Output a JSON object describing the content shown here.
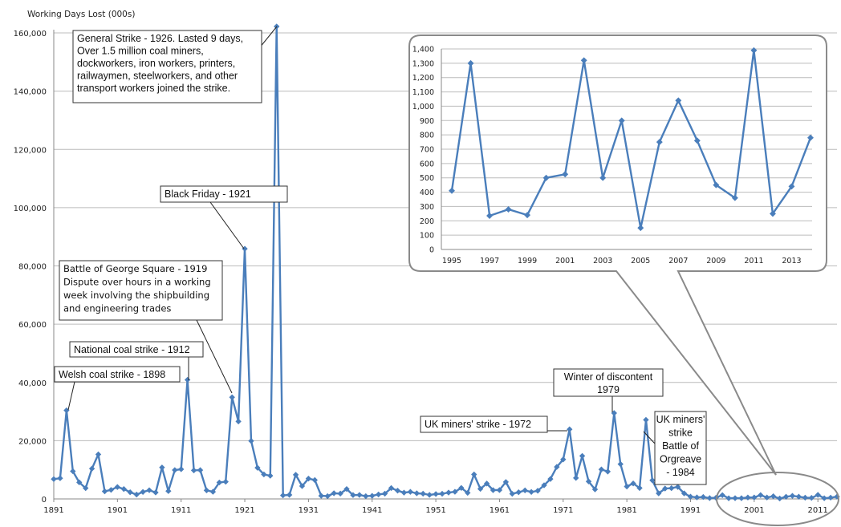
{
  "chart_data": [
    {
      "type": "line",
      "ylabel": "Working Days Lost (000s)",
      "xlim": [
        1891,
        2014
      ],
      "ylim": [
        0,
        160000
      ],
      "yticks": [
        "0",
        "20,000",
        "40,000",
        "60,000",
        "80,000",
        "100,000",
        "120,000",
        "140,000",
        "160,000"
      ],
      "xticks": [
        "1891",
        "1901",
        "1911",
        "1921",
        "1931",
        "1941",
        "1951",
        "1961",
        "1971",
        "1981",
        "1991",
        "2001",
        "2011"
      ],
      "grid": "horizontal",
      "series": [
        {
          "color": "#4a7ebb",
          "x": [
            1891,
            1892,
            1893,
            1894,
            1895,
            1896,
            1897,
            1898,
            1899,
            1900,
            1901,
            1902,
            1903,
            1904,
            1905,
            1906,
            1907,
            1908,
            1909,
            1910,
            1911,
            1912,
            1913,
            1914,
            1915,
            1916,
            1917,
            1918,
            1919,
            1920,
            1921,
            1922,
            1923,
            1924,
            1925,
            1926,
            1927,
            1928,
            1929,
            1930,
            1931,
            1932,
            1933,
            1934,
            1935,
            1936,
            1937,
            1938,
            1939,
            1940,
            1941,
            1942,
            1943,
            1944,
            1945,
            1946,
            1947,
            1948,
            1949,
            1950,
            1951,
            1952,
            1953,
            1954,
            1955,
            1956,
            1957,
            1958,
            1959,
            1960,
            1961,
            1962,
            1963,
            1964,
            1965,
            1966,
            1967,
            1968,
            1969,
            1970,
            1971,
            1972,
            1973,
            1974,
            1975,
            1976,
            1977,
            1978,
            1979,
            1980,
            1981,
            1982,
            1983,
            1984,
            1985,
            1986,
            1987,
            1988,
            1989,
            1990,
            1991,
            1992,
            1993,
            1994,
            1995,
            1996,
            1997,
            1998,
            1999,
            2000,
            2001,
            2002,
            2003,
            2004,
            2005,
            2006,
            2007,
            2008,
            2009,
            2010,
            2011,
            2012,
            2013,
            2014
          ],
          "y": [
            6800,
            7100,
            30400,
            9500,
            5700,
            3700,
            10400,
            15300,
            2600,
            3100,
            4100,
            3400,
            2300,
            1500,
            2400,
            3000,
            2200,
            10800,
            2700,
            9900,
            10200,
            40900,
            9800,
            9900,
            2950,
            2450,
            5650,
            5900,
            34900,
            26600,
            85900,
            19900,
            10700,
            8400,
            7950,
            162200,
            1200,
            1390,
            8300,
            4400,
            6980,
            6490,
            1070,
            960,
            1960,
            1830,
            3410,
            1330,
            1360,
            940,
            1080,
            1530,
            1810,
            3710,
            2840,
            2160,
            2430,
            1940,
            1810,
            1380,
            1690,
            1790,
            2180,
            2460,
            3780,
            2080,
            8410,
            3460,
            5270,
            3020,
            3050,
            5800,
            1760,
            2280,
            2930,
            2400,
            2790,
            4690,
            6850,
            10980,
            13550,
            23910,
            7200,
            14750,
            6010,
            3280,
            10140,
            9400,
            29470,
            11960,
            4270,
            5310,
            3750,
            27140,
            6400,
            1920,
            3550,
            3700,
            4130,
            1900,
            760,
            530,
            650,
            280,
            410,
            1300,
            235,
            280,
            240,
            500,
            525,
            1320,
            500,
            900,
            150,
            750,
            1040,
            760,
            450,
            360,
            1390,
            250,
            440,
            780
          ]
        }
      ],
      "annotations": [
        "General Strike - 1926. Lasted 9 days, Over 1.5 million coal miners, dockworkers, iron workers, printers, railwaymen, steelworkers, and other transport workers joined the strike.",
        "Black Friday - 1921",
        "Battle of George Square - 1919 Dispute over hours in a working week involving the shipbuilding and engineering trades",
        "National coal strike - 1912",
        "Welsh coal strike - 1898",
        "Winter of discontent 1979",
        "UK miners' strike - 1972",
        "UK miners' strike Battle of Orgreave - 1984"
      ]
    },
    {
      "type": "line",
      "xlim": [
        1995,
        2014
      ],
      "ylim": [
        0,
        1400
      ],
      "yticks": [
        "0",
        "100",
        "200",
        "300",
        "400",
        "500",
        "600",
        "700",
        "800",
        "900",
        "1,000",
        "1,100",
        "1,200",
        "1,300",
        "1,400"
      ],
      "xticks": [
        "1995",
        "1997",
        "1999",
        "2001",
        "2003",
        "2005",
        "2007",
        "2009",
        "2011",
        "2013"
      ],
      "grid": "horizontal",
      "series": [
        {
          "color": "#4a7ebb",
          "x": [
            1995,
            1996,
            1997,
            1998,
            1999,
            2000,
            2001,
            2002,
            2003,
            2004,
            2005,
            2006,
            2007,
            2008,
            2009,
            2010,
            2011,
            2012,
            2013,
            2014
          ],
          "y": [
            410,
            1300,
            235,
            280,
            240,
            500,
            525,
            1320,
            500,
            900,
            150,
            750,
            1040,
            760,
            450,
            360,
            1390,
            250,
            440,
            780
          ]
        }
      ]
    }
  ],
  "annotations": {
    "general_strike": [
      "General Strike - 1926. Lasted 9 days,",
      "Over 1.5 million coal miners,",
      "dockworkers, iron workers, printers,",
      "railwaymen, steelworkers, and other",
      "transport workers joined the strike."
    ],
    "black_friday": [
      "Black Friday - 1921"
    ],
    "george_square": [
      "Battle of George Square - 1919",
      "Dispute over hours in a working",
      "week involving the shipbuilding",
      "and engineering trades"
    ],
    "national_coal": [
      "National coal strike - 1912"
    ],
    "welsh_coal": [
      "Welsh coal strike - 1898"
    ],
    "winter": [
      "Winter of discontent",
      "1979"
    ],
    "miners_1972": [
      "UK miners' strike - 1972"
    ],
    "miners_1984": [
      "UK miners'",
      "strike",
      "Battle of",
      "Orgreave",
      "- 1984"
    ]
  }
}
